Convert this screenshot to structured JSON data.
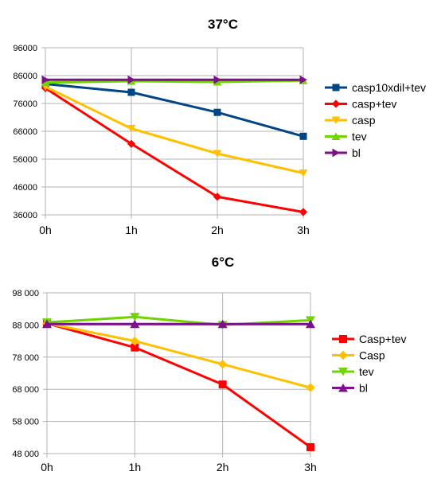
{
  "chart_data": [
    {
      "type": "line",
      "title": "37°C",
      "xlabel": "",
      "ylabel": "",
      "categories": [
        "0h",
        "1h",
        "2h",
        "3h"
      ],
      "ylim": [
        36000,
        96000
      ],
      "yticks": [
        "36000",
        "46000",
        "56000",
        "66000",
        "76000",
        "86000",
        "96000"
      ],
      "ytick_values": [
        36000,
        46000,
        56000,
        66000,
        76000,
        86000,
        96000
      ],
      "grid": true,
      "legend": "right",
      "series": [
        {
          "name": "casp10xdil+tev",
          "values": [
            83000,
            80000,
            72800,
            64200
          ],
          "color": "#004586",
          "marker": "square"
        },
        {
          "name": "casp+tev",
          "values": [
            81500,
            61500,
            42500,
            37000
          ],
          "color": "#ff0000",
          "marker": "diamond"
        },
        {
          "name": "casp",
          "values": [
            82000,
            67000,
            58000,
            51000
          ],
          "color": "#ffc000",
          "marker": "triangle-down"
        },
        {
          "name": "tev",
          "values": [
            83500,
            84000,
            83700,
            84200
          ],
          "color": "#6fd400",
          "marker": "triangle-up"
        },
        {
          "name": "bl",
          "values": [
            84500,
            84500,
            84500,
            84500
          ],
          "color": "#7e0f8d",
          "marker": "triangle-right"
        }
      ]
    },
    {
      "type": "line",
      "title": "6°C",
      "xlabel": "",
      "ylabel": "",
      "categories": [
        "0h",
        "1h",
        "2h",
        "3h"
      ],
      "ylim": [
        48000,
        98000
      ],
      "yticks": [
        "48 000",
        "58 000",
        "68 000",
        "78 000",
        "88 000",
        "98 000"
      ],
      "ytick_values": [
        48000,
        58000,
        68000,
        78000,
        88000,
        98000
      ],
      "grid": true,
      "legend": "right",
      "series": [
        {
          "name": "Casp+tev",
          "values": [
            88500,
            81000,
            69500,
            50000
          ],
          "color": "#ff0000",
          "marker": "square"
        },
        {
          "name": "Casp",
          "values": [
            88500,
            83000,
            75800,
            68500
          ],
          "color": "#ffc000",
          "marker": "diamond"
        },
        {
          "name": "tev",
          "values": [
            88800,
            90500,
            88000,
            89500
          ],
          "color": "#6fd400",
          "marker": "triangle-down"
        },
        {
          "name": "bl",
          "values": [
            88300,
            88300,
            88300,
            88300
          ],
          "color": "#7e0f8d",
          "marker": "triangle-up"
        }
      ]
    }
  ]
}
